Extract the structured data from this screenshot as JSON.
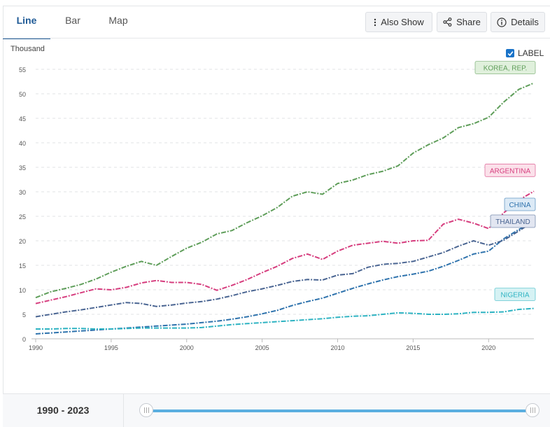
{
  "tabs": [
    {
      "label": "Line",
      "active": true
    },
    {
      "label": "Bar",
      "active": false
    },
    {
      "label": "Map",
      "active": false
    }
  ],
  "toolbar": {
    "also_show_label": "Also Show",
    "share_label": "Share",
    "details_label": "Details"
  },
  "label_toggle": {
    "label": "LABEL",
    "checked": true
  },
  "range": {
    "start": "1990",
    "separator": "-",
    "end": "2023"
  },
  "chart_data": {
    "type": "line",
    "ylabel": "Thousand",
    "ylim": [
      0,
      55
    ],
    "yticks": [
      0,
      5,
      10,
      15,
      20,
      25,
      30,
      35,
      40,
      45,
      50,
      55
    ],
    "xlim": [
      1990,
      2023
    ],
    "xticks": [
      1990,
      1995,
      2000,
      2005,
      2010,
      2015,
      2020
    ],
    "grid": "horizontal dashed",
    "x": [
      1990,
      1991,
      1992,
      1993,
      1994,
      1995,
      1996,
      1997,
      1998,
      1999,
      2000,
      2001,
      2002,
      2003,
      2004,
      2005,
      2006,
      2007,
      2008,
      2009,
      2010,
      2011,
      2012,
      2013,
      2014,
      2015,
      2016,
      2017,
      2018,
      2019,
      2020,
      2021,
      2022,
      2023
    ],
    "series": [
      {
        "name": "KOREA, REP.",
        "color": "#5f9e5a",
        "label_bg": "#e0f0dc",
        "values": [
          8.4,
          9.6,
          10.3,
          11.1,
          12.2,
          13.6,
          14.8,
          15.8,
          15.0,
          16.8,
          18.5,
          19.7,
          21.4,
          22.1,
          23.7,
          25.1,
          26.8,
          29.1,
          30.0,
          29.5,
          31.7,
          32.4,
          33.5,
          34.2,
          35.3,
          37.9,
          39.6,
          41.0,
          43.1,
          43.9,
          45.2,
          48.3,
          50.9,
          52.2
        ]
      },
      {
        "name": "ARGENTINA",
        "color": "#d63d7e",
        "label_bg": "#fbe1ea",
        "values": [
          7.2,
          7.9,
          8.6,
          9.4,
          10.2,
          10.0,
          10.5,
          11.4,
          11.9,
          11.5,
          11.5,
          11.1,
          9.9,
          10.9,
          12.1,
          13.5,
          14.8,
          16.4,
          17.3,
          16.2,
          17.9,
          19.1,
          19.5,
          19.9,
          19.5,
          20.0,
          20.1,
          23.4,
          24.4,
          23.6,
          22.5,
          25.7,
          28.3,
          30.1
        ]
      },
      {
        "name": "CHINA",
        "color": "#2f73ad",
        "label_bg": "#dceaf6",
        "values": [
          1.0,
          1.2,
          1.4,
          1.6,
          1.8,
          2.0,
          2.2,
          2.4,
          2.6,
          2.8,
          3.0,
          3.3,
          3.6,
          4.0,
          4.5,
          5.1,
          5.8,
          6.8,
          7.6,
          8.3,
          9.3,
          10.3,
          11.2,
          12.0,
          12.7,
          13.2,
          13.8,
          14.8,
          16.0,
          17.3,
          17.9,
          20.4,
          22.3,
          24.0
        ]
      },
      {
        "name": "THAILAND",
        "color": "#4a6592",
        "label_bg": "#e2e6f1",
        "values": [
          4.5,
          5.0,
          5.5,
          5.9,
          6.4,
          6.9,
          7.4,
          7.2,
          6.6,
          6.9,
          7.3,
          7.6,
          8.1,
          8.8,
          9.6,
          10.2,
          10.9,
          11.7,
          12.1,
          12.0,
          13.0,
          13.3,
          14.6,
          15.2,
          15.4,
          15.8,
          16.7,
          17.6,
          18.9,
          20.0,
          19.1,
          20.1,
          22.0,
          24.0
        ]
      },
      {
        "name": "NIGERIA",
        "color": "#2eb3c2",
        "label_bg": "#d6f2f4",
        "values": [
          2.0,
          2.0,
          2.1,
          2.1,
          2.0,
          2.0,
          2.1,
          2.2,
          2.2,
          2.2,
          2.2,
          2.3,
          2.6,
          2.9,
          3.1,
          3.3,
          3.5,
          3.7,
          3.9,
          4.1,
          4.4,
          4.6,
          4.7,
          5.0,
          5.3,
          5.2,
          5.0,
          5.0,
          5.1,
          5.4,
          5.4,
          5.5,
          6.0,
          6.2
        ]
      }
    ]
  }
}
